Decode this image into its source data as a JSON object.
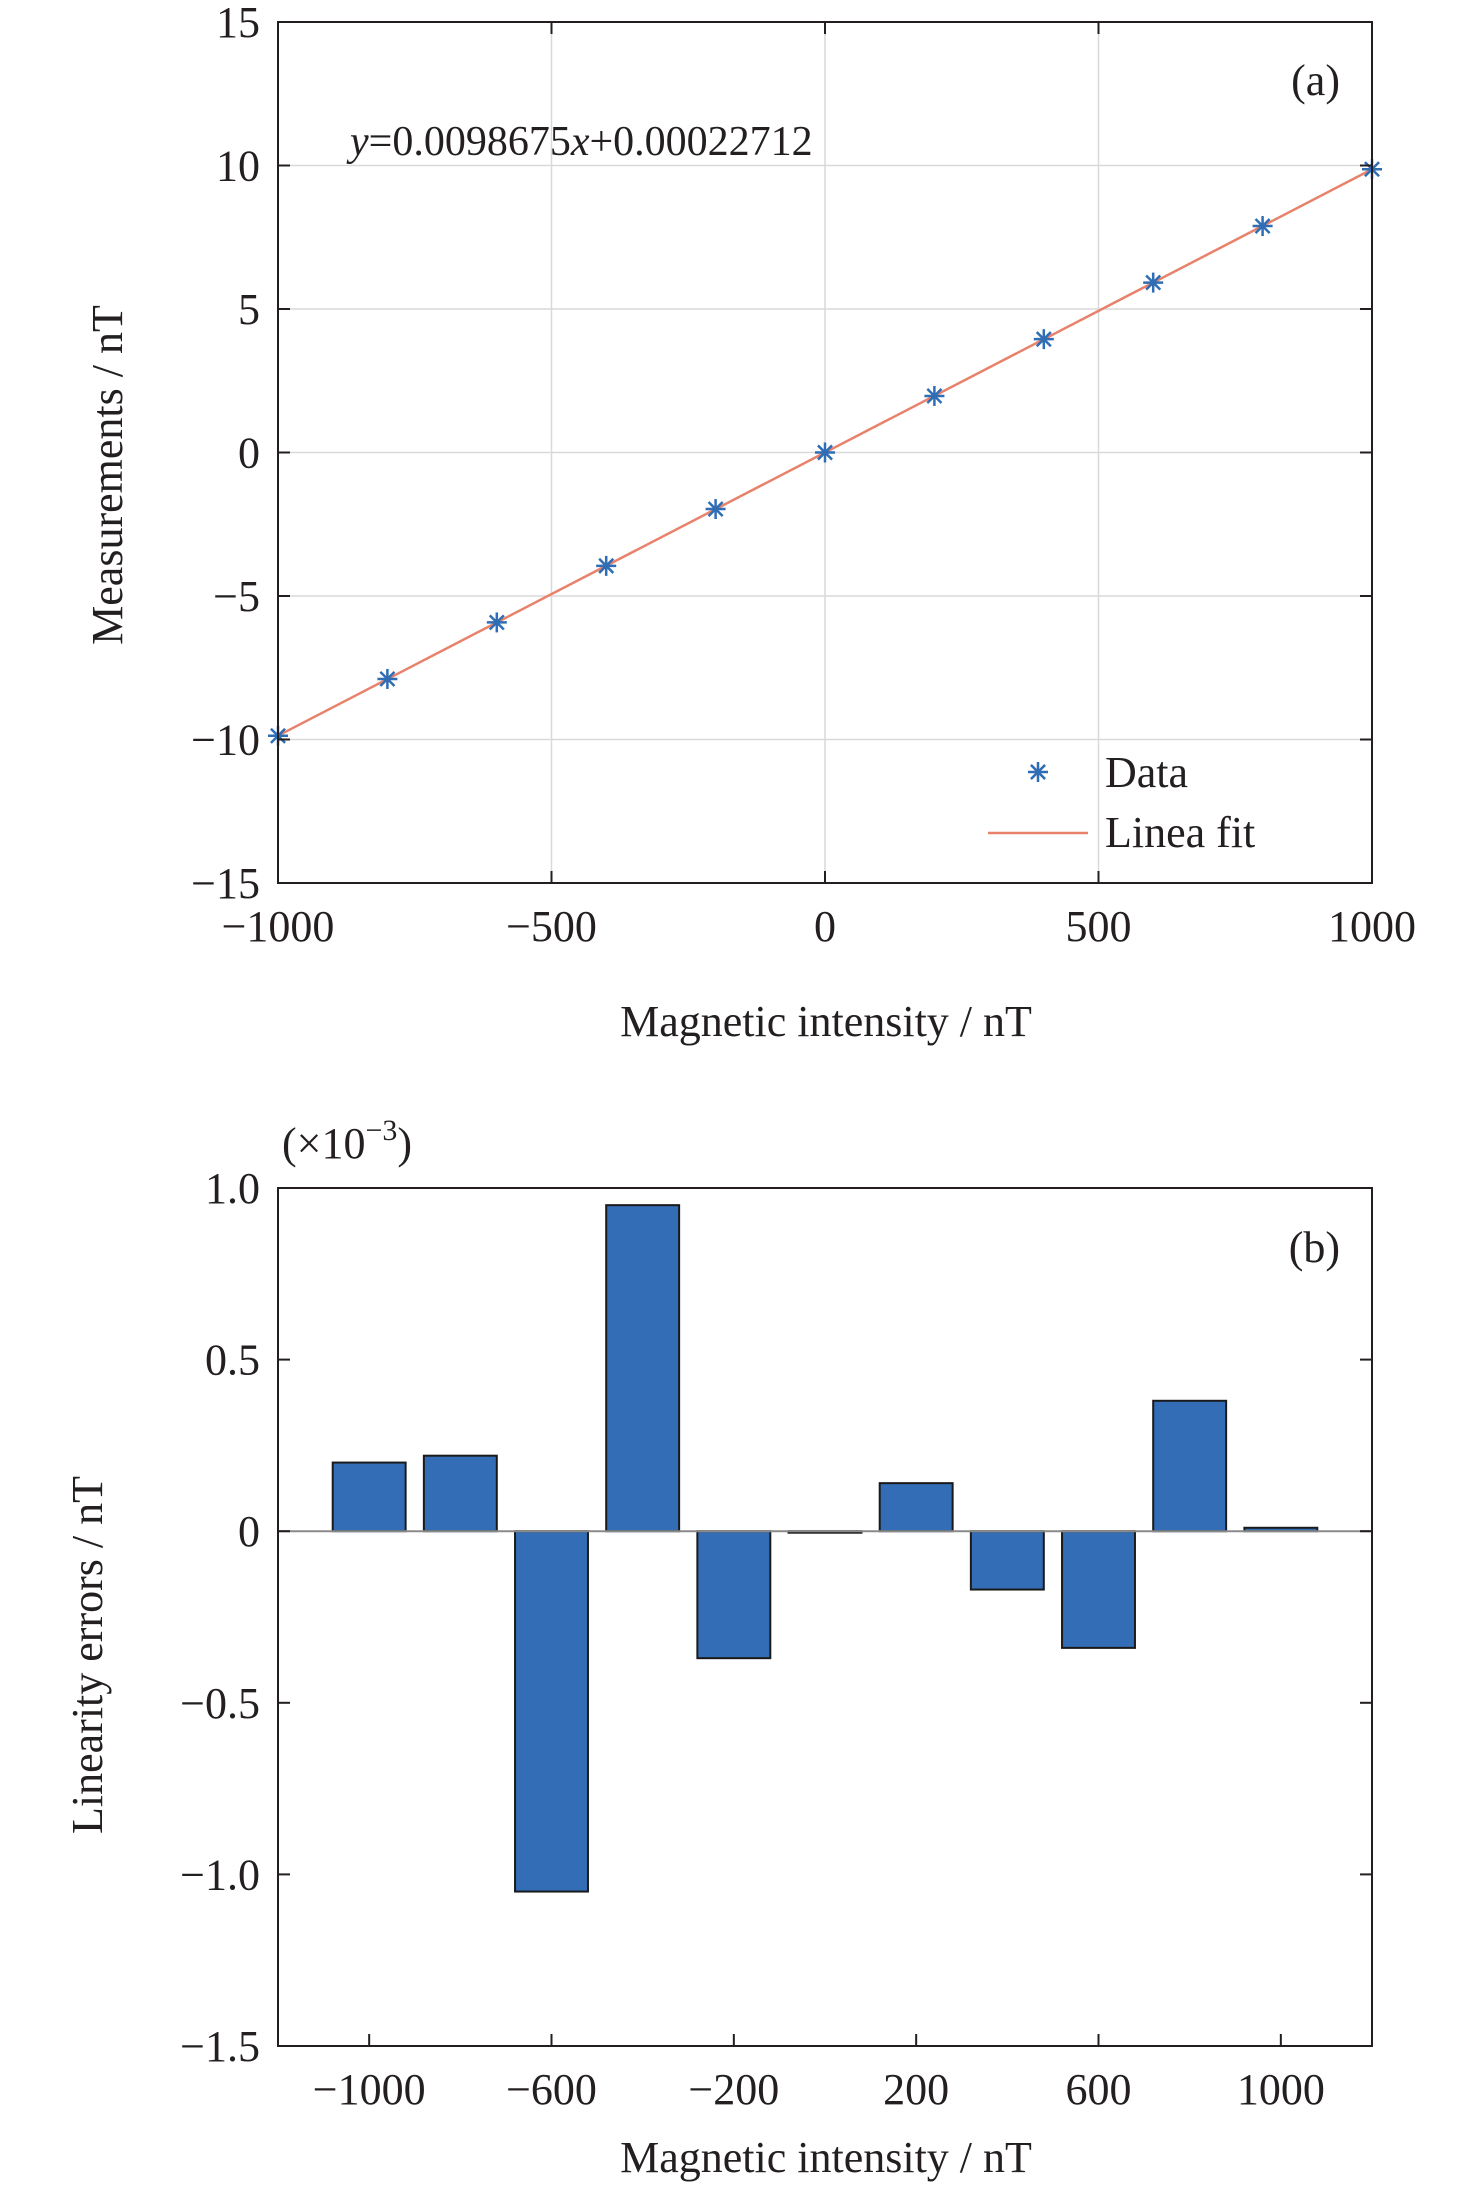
{
  "figure": {
    "colors": {
      "marker": "#2f6db5",
      "fit_line": "#e8826a",
      "bar_fill": "#336db6",
      "bar_edge": "#1a1a1a",
      "grid": "#d9d9d9",
      "axis": "#231f20"
    }
  },
  "chart_data": [
    {
      "type": "scatter",
      "panel_label": "(a)",
      "equation": {
        "prefix_var": "y",
        "eq_sign": "=",
        "coef": "0.0098675",
        "suffix_var": "x",
        "rest": "+0.00022712"
      },
      "xlabel": "Magnetic intensity / nT",
      "ylabel": "Measurements / nT",
      "xlim": [
        -1000,
        1000
      ],
      "ylim": [
        -15,
        15
      ],
      "xticks": [
        -1000,
        -500,
        0,
        500,
        1000
      ],
      "yticks": [
        -15,
        -10,
        -5,
        0,
        5,
        10,
        15
      ],
      "xtick_labels": [
        "−1000",
        "−500",
        "0",
        "500",
        "1000"
      ],
      "ytick_labels": [
        "−15",
        "−10",
        "−5",
        "0",
        "5",
        "10",
        "15"
      ],
      "grid": true,
      "legend": {
        "position": "bottom-right",
        "entries": [
          "Data",
          "Linea fit"
        ]
      },
      "series": [
        {
          "name": "Data",
          "kind": "markers",
          "marker": "asterisk",
          "x": [
            -1000,
            -800,
            -600,
            -400,
            -200,
            0,
            200,
            400,
            600,
            800,
            1000
          ],
          "y": [
            -9.87,
            -7.89,
            -5.92,
            -3.95,
            -1.97,
            0.0,
            1.97,
            3.95,
            5.92,
            7.89,
            9.87
          ]
        },
        {
          "name": "Linea fit",
          "kind": "line",
          "slope": 0.0098675,
          "intercept": 0.00022712,
          "x_range": [
            -1000,
            1000
          ]
        }
      ]
    },
    {
      "type": "bar",
      "panel_label": "(b)",
      "exponent_label": "(×10",
      "exponent_power": "−3",
      "exponent_close": ")",
      "xlabel": "Magnetic intensity / nT",
      "ylabel": "Linearity errors / nT",
      "ylim": [
        -1.5,
        1.0
      ],
      "xlim": [
        -1200,
        1200
      ],
      "yticks": [
        -1.5,
        -1.0,
        -0.5,
        0,
        0.5,
        1.0
      ],
      "ytick_labels": [
        "−1.5",
        "−1.0",
        "−0.5",
        "0",
        "0.5",
        "1.0"
      ],
      "xticks": [
        -1000,
        -600,
        -200,
        200,
        600,
        1000
      ],
      "xtick_labels": [
        "−1000",
        "−600",
        "−200",
        "200",
        "600",
        "1000"
      ],
      "grid": false,
      "categories": [
        -1000,
        -800,
        -600,
        -400,
        -200,
        0,
        200,
        400,
        600,
        800,
        1000
      ],
      "values": [
        0.2,
        0.22,
        -1.05,
        0.95,
        -0.37,
        0.0,
        0.14,
        -0.17,
        -0.34,
        0.38,
        0.01
      ]
    }
  ]
}
